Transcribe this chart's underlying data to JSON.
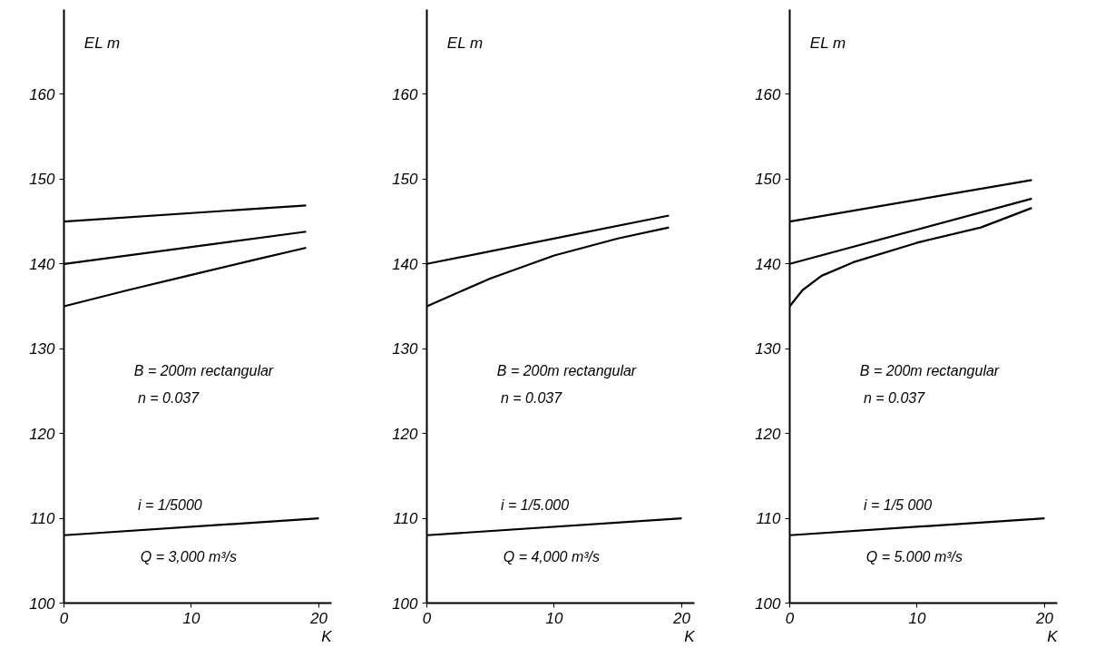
{
  "chart_data": [
    {
      "type": "line",
      "ylabel": "EL m",
      "xlabel": "K",
      "xlim": [
        0,
        21
      ],
      "ylim": [
        100,
        170
      ],
      "xticks": [
        0,
        10,
        20
      ],
      "yticks": [
        100,
        110,
        120,
        130,
        140,
        150,
        160
      ],
      "annotations": [
        "B = 200m rectangular",
        "n = 0.037",
        "i = 1/5000",
        "Q = 3,000 m³/s"
      ],
      "series": [
        {
          "color": "#000000",
          "x": [
            0,
            19
          ],
          "values": [
            145,
            146.9
          ]
        },
        {
          "color": "#000000",
          "x": [
            0,
            19
          ],
          "values": [
            140,
            143.8
          ]
        },
        {
          "color": "#000000",
          "x": [
            0,
            5,
            10,
            15,
            19
          ],
          "values": [
            135,
            136.9,
            138.7,
            140.5,
            141.9
          ]
        },
        {
          "color": "#000000",
          "x": [
            0,
            20
          ],
          "values": [
            108,
            110
          ]
        }
      ]
    },
    {
      "type": "line",
      "ylabel": "EL m",
      "xlabel": "K",
      "xlim": [
        0,
        21
      ],
      "ylim": [
        100,
        170
      ],
      "xticks": [
        0,
        10,
        20
      ],
      "yticks": [
        100,
        110,
        120,
        130,
        140,
        150,
        160
      ],
      "annotations": [
        "B = 200m rectangular",
        "n = 0.037",
        "i = 1/5.000",
        "Q = 4,000 m³/s"
      ],
      "series": [
        {
          "color": "#000000",
          "x": [
            0,
            19
          ],
          "values": [
            140,
            145.7
          ]
        },
        {
          "color": "#000000",
          "x": [
            0,
            5,
            10,
            15,
            19
          ],
          "values": [
            135,
            138.3,
            141.0,
            143.0,
            144.3
          ]
        },
        {
          "color": "#000000",
          "x": [
            0,
            20
          ],
          "values": [
            108,
            110
          ]
        }
      ]
    },
    {
      "type": "line",
      "ylabel": "EL m",
      "xlabel": "K",
      "xlim": [
        0,
        21
      ],
      "ylim": [
        100,
        170
      ],
      "xticks": [
        0,
        10,
        20
      ],
      "yticks": [
        100,
        110,
        120,
        130,
        140,
        150,
        160
      ],
      "annotations": [
        "B = 200m rectangular",
        "n = 0.037",
        "i = 1/5 000",
        "Q = 5.000 m³/s"
      ],
      "series": [
        {
          "color": "#000000",
          "x": [
            0,
            19
          ],
          "values": [
            145,
            149.9
          ]
        },
        {
          "color": "#000000",
          "x": [
            0,
            19
          ],
          "values": [
            140,
            147.7
          ]
        },
        {
          "color": "#000000",
          "x": [
            0,
            1,
            2.5,
            5,
            10,
            15,
            19
          ],
          "values": [
            135,
            136.9,
            138.6,
            140.2,
            142.5,
            144.3,
            146.6
          ]
        },
        {
          "color": "#000000",
          "x": [
            0,
            20
          ],
          "values": [
            108,
            110
          ]
        }
      ]
    }
  ]
}
